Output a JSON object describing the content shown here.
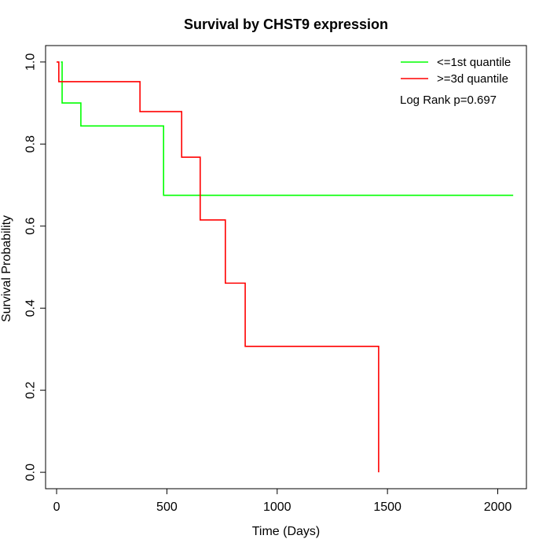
{
  "chart_data": {
    "type": "line",
    "title": "Survival by CHST9 expression",
    "xlabel": "Time (Days)",
    "ylabel": "Survival Probability",
    "xlim": [
      -50,
      2130
    ],
    "ylim": [
      -0.04,
      1.04
    ],
    "x_ticks": [
      0,
      500,
      1000,
      1500,
      2000
    ],
    "x_tick_labels": [
      "0",
      "500",
      "1000",
      "1500",
      "2000"
    ],
    "y_ticks": [
      0.0,
      0.2,
      0.4,
      0.6,
      0.8,
      1.0
    ],
    "y_tick_labels": [
      "0.0",
      "0.2",
      "0.4",
      "0.6",
      "0.8",
      "1.0"
    ],
    "legend_position": "top-right",
    "annotation": "Log Rank p=0.697",
    "series": [
      {
        "name": "<=1st quantile",
        "color": "#00ff00",
        "step_points": [
          [
            20,
            1.0
          ],
          [
            25,
            0.9
          ],
          [
            110,
            0.844
          ],
          [
            485,
            0.675
          ],
          [
            2070,
            0.675
          ]
        ]
      },
      {
        "name": ">=3d quantile",
        "color": "#ff0000",
        "step_points": [
          [
            0,
            1.0
          ],
          [
            10,
            0.952
          ],
          [
            378,
            0.879
          ],
          [
            567,
            0.768
          ],
          [
            651,
            0.615
          ],
          [
            765,
            0.461
          ],
          [
            855,
            0.307
          ],
          [
            1460,
            0.307
          ],
          [
            1460,
            0.0
          ]
        ]
      }
    ]
  }
}
